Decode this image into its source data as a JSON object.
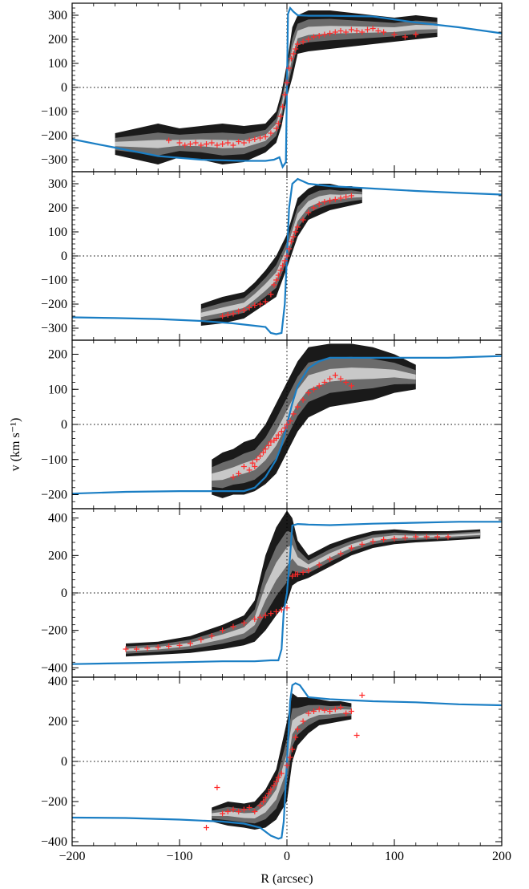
{
  "figure": {
    "x_label": "R (arcsec)",
    "y_label": "v (km s⁻¹)"
  },
  "colors": {
    "model_curve": "#1a7ec4",
    "data_points": "#ff2a2a",
    "contour_dark": "#1a1a1a",
    "contour_mid": "#6b6b6b",
    "contour_light": "#c8c8c8",
    "zero_line": "#000000"
  },
  "chart_data": [
    {
      "type": "scatter",
      "panel": 1,
      "xlim": [
        -200,
        200
      ],
      "ylim": [
        -350,
        350
      ],
      "yticks": [
        -300,
        -200,
        -100,
        0,
        100,
        200,
        300
      ],
      "xticks": [
        -200,
        -100,
        0,
        100,
        200
      ],
      "contour_envelope": {
        "x": [
          -160,
          -140,
          -120,
          -100,
          -80,
          -60,
          -40,
          -20,
          -10,
          -5,
          0,
          5,
          10,
          20,
          40,
          60,
          80,
          100,
          120,
          140
        ],
        "lower": [
          -280,
          -300,
          -320,
          -290,
          -300,
          -320,
          -310,
          -270,
          -230,
          -160,
          -40,
          40,
          140,
          150,
          160,
          170,
          180,
          190,
          200,
          210
        ],
        "upper": [
          -190,
          -170,
          -150,
          -170,
          -160,
          -150,
          -160,
          -150,
          -100,
          -20,
          100,
          250,
          300,
          320,
          320,
          310,
          300,
          290,
          300,
          290
        ]
      },
      "model_curve": {
        "x": [
          -200,
          -160,
          -120,
          -80,
          -40,
          -20,
          -12,
          -7,
          -4,
          -1,
          0,
          1,
          3,
          6,
          10,
          20,
          40,
          80,
          120,
          160,
          200
        ],
        "y": [
          -215,
          -250,
          -285,
          -300,
          -305,
          -305,
          -300,
          -290,
          -330,
          -310,
          0,
          305,
          330,
          315,
          300,
          298,
          298,
          295,
          270,
          250,
          225
        ]
      },
      "points": {
        "x": [
          -110,
          -100,
          -95,
          -90,
          -85,
          -80,
          -75,
          -70,
          -65,
          -60,
          -55,
          -50,
          -45,
          -40,
          -35,
          -30,
          -25,
          -20,
          -15,
          -10,
          -8,
          -6,
          -4,
          -2,
          0,
          2,
          4,
          6,
          8,
          10,
          15,
          20,
          25,
          30,
          35,
          40,
          45,
          50,
          55,
          60,
          65,
          70,
          75,
          80,
          85,
          90,
          100,
          110,
          120
        ],
        "y": [
          -220,
          -230,
          -240,
          -235,
          -230,
          -240,
          -235,
          -230,
          -240,
          -235,
          -230,
          -240,
          -225,
          -230,
          -220,
          -215,
          -210,
          -205,
          -190,
          -170,
          -150,
          -120,
          -80,
          -30,
          20,
          80,
          120,
          140,
          160,
          180,
          190,
          200,
          210,
          215,
          220,
          225,
          230,
          235,
          230,
          240,
          235,
          230,
          240,
          245,
          235,
          230,
          220,
          210,
          220
        ]
      }
    },
    {
      "type": "scatter",
      "panel": 2,
      "xlim": [
        -200,
        200
      ],
      "ylim": [
        -350,
        350
      ],
      "yticks": [
        -300,
        -200,
        -100,
        0,
        100,
        200,
        300
      ],
      "xticks": [
        -200,
        -100,
        0,
        100,
        200
      ],
      "contour_envelope": {
        "x": [
          -80,
          -60,
          -40,
          -30,
          -20,
          -10,
          0,
          10,
          20,
          30,
          40,
          50,
          60,
          70
        ],
        "lower": [
          -290,
          -280,
          -260,
          -230,
          -200,
          -170,
          -50,
          80,
          150,
          170,
          190,
          200,
          210,
          220
        ],
        "upper": [
          -200,
          -170,
          -150,
          -110,
          -60,
          0,
          90,
          240,
          280,
          300,
          300,
          290,
          290,
          280
        ]
      },
      "model_curve": {
        "x": [
          -200,
          -160,
          -120,
          -80,
          -50,
          -30,
          -20,
          -15,
          -10,
          -5,
          -2,
          0,
          2,
          5,
          10,
          15,
          20,
          40,
          80,
          120,
          160,
          200
        ],
        "y": [
          -255,
          -258,
          -262,
          -270,
          -280,
          -290,
          -295,
          -320,
          -325,
          -320,
          -200,
          0,
          200,
          300,
          320,
          310,
          300,
          290,
          280,
          270,
          262,
          255
        ]
      },
      "points": {
        "x": [
          -60,
          -55,
          -50,
          -45,
          -40,
          -35,
          -30,
          -25,
          -20,
          -15,
          -12,
          -10,
          -8,
          -6,
          -4,
          -2,
          0,
          2,
          4,
          6,
          8,
          10,
          15,
          20,
          25,
          30,
          35,
          40,
          45,
          50,
          55,
          60
        ],
        "y": [
          -250,
          -245,
          -240,
          -230,
          -225,
          -215,
          -205,
          -200,
          -190,
          -160,
          -120,
          -100,
          -80,
          -60,
          -40,
          -20,
          0,
          30,
          60,
          80,
          100,
          120,
          150,
          180,
          200,
          215,
          225,
          230,
          235,
          240,
          245,
          250
        ]
      }
    },
    {
      "type": "scatter",
      "panel": 3,
      "xlim": [
        -200,
        200
      ],
      "ylim": [
        -240,
        240
      ],
      "yticks": [
        -200,
        -100,
        0,
        100,
        200
      ],
      "xticks": [
        -200,
        -100,
        0,
        100,
        200
      ],
      "contour_envelope": {
        "x": [
          -70,
          -60,
          -50,
          -40,
          -30,
          -20,
          -10,
          0,
          10,
          20,
          40,
          60,
          80,
          100,
          120
        ],
        "lower": [
          -200,
          -210,
          -200,
          -200,
          -190,
          -170,
          -140,
          -80,
          -20,
          20,
          50,
          60,
          70,
          90,
          100
        ],
        "upper": [
          -100,
          -80,
          -70,
          -50,
          -40,
          0,
          60,
          120,
          180,
          220,
          230,
          230,
          220,
          200,
          170
        ]
      },
      "model_curve": {
        "x": [
          -200,
          -150,
          -100,
          -70,
          -50,
          -40,
          -30,
          -20,
          -10,
          -5,
          0,
          5,
          10,
          20,
          30,
          40,
          60,
          100,
          150,
          200
        ],
        "y": [
          -197,
          -192,
          -190,
          -190,
          -190,
          -190,
          -180,
          -150,
          -100,
          -60,
          0,
          60,
          110,
          160,
          180,
          190,
          190,
          190,
          190,
          195
        ]
      },
      "points": {
        "x": [
          -50,
          -45,
          -40,
          -35,
          -32,
          -30,
          -28,
          -25,
          -22,
          -20,
          -17,
          -15,
          -12,
          -10,
          -8,
          -5,
          -2,
          0,
          3,
          6,
          10,
          15,
          20,
          25,
          30,
          35,
          40,
          45,
          50,
          55,
          60
        ],
        "y": [
          -150,
          -140,
          -120,
          -130,
          -110,
          -120,
          -100,
          -90,
          -80,
          -70,
          -60,
          -50,
          -45,
          -40,
          -30,
          -20,
          -10,
          0,
          10,
          30,
          50,
          70,
          90,
          100,
          110,
          120,
          130,
          140,
          130,
          120,
          110
        ]
      }
    },
    {
      "type": "scatter",
      "panel": 4,
      "xlim": [
        -200,
        200
      ],
      "ylim": [
        -450,
        450
      ],
      "yticks": [
        -400,
        -200,
        0,
        200,
        400
      ],
      "xticks": [
        -200,
        -100,
        0,
        100,
        200
      ],
      "contour_envelope": {
        "x": [
          -150,
          -120,
          -90,
          -60,
          -40,
          -30,
          -20,
          -10,
          0,
          5,
          10,
          20,
          40,
          60,
          80,
          100,
          120,
          150,
          180
        ],
        "lower": [
          -340,
          -330,
          -320,
          -300,
          -280,
          -260,
          -200,
          -120,
          -50,
          40,
          60,
          80,
          140,
          200,
          240,
          260,
          270,
          280,
          290
        ],
        "upper": [
          -270,
          -260,
          -230,
          -170,
          -120,
          -40,
          200,
          350,
          440,
          400,
          280,
          200,
          260,
          300,
          330,
          340,
          330,
          330,
          340
        ]
      },
      "model_curve": {
        "x": [
          -200,
          -150,
          -100,
          -60,
          -30,
          -15,
          -8,
          -5,
          -3,
          0,
          3,
          5,
          8,
          10,
          20,
          40,
          80,
          120,
          160,
          200
        ],
        "y": [
          -380,
          -375,
          -370,
          -365,
          -365,
          -360,
          -360,
          -300,
          -100,
          0,
          200,
          360,
          365,
          368,
          365,
          362,
          370,
          375,
          380,
          380
        ]
      },
      "points": {
        "x": [
          -150,
          -140,
          -130,
          -120,
          -110,
          -100,
          -90,
          -80,
          -70,
          -60,
          -50,
          -40,
          -30,
          -25,
          -20,
          -15,
          -10,
          -5,
          0,
          5,
          8,
          10,
          15,
          20,
          30,
          40,
          50,
          60,
          70,
          80,
          90,
          100,
          110,
          120,
          130,
          140,
          150
        ],
        "y": [
          -300,
          -300,
          -295,
          -290,
          -285,
          -280,
          -270,
          -250,
          -230,
          -200,
          -180,
          -160,
          -140,
          -130,
          -120,
          -110,
          -100,
          -90,
          -80,
          90,
          100,
          100,
          110,
          120,
          150,
          180,
          210,
          240,
          260,
          275,
          285,
          290,
          295,
          300,
          300,
          300,
          300
        ]
      }
    },
    {
      "type": "scatter",
      "panel": 5,
      "xlim": [
        -200,
        200
      ],
      "ylim": [
        -420,
        420
      ],
      "yticks": [
        -400,
        -200,
        0,
        200,
        400
      ],
      "xticks": [
        -200,
        -100,
        0,
        100,
        200
      ],
      "contour_envelope": {
        "x": [
          -70,
          -55,
          -40,
          -30,
          -20,
          -10,
          0,
          5,
          10,
          20,
          30,
          40,
          50,
          60
        ],
        "lower": [
          -300,
          -320,
          -330,
          -340,
          -330,
          -290,
          -200,
          0,
          80,
          140,
          180,
          190,
          200,
          210
        ],
        "upper": [
          -230,
          -200,
          -210,
          -200,
          -140,
          -40,
          200,
          340,
          320,
          320,
          310,
          300,
          300,
          290
        ]
      },
      "model_curve": {
        "x": [
          -200,
          -150,
          -100,
          -60,
          -40,
          -25,
          -15,
          -8,
          -5,
          -3,
          0,
          3,
          5,
          8,
          12,
          20,
          40,
          80,
          120,
          160,
          200
        ],
        "y": [
          -280,
          -282,
          -290,
          -300,
          -310,
          -330,
          -370,
          -385,
          -380,
          -300,
          0,
          300,
          380,
          390,
          380,
          320,
          310,
          300,
          295,
          285,
          280
        ]
      },
      "points": {
        "x": [
          -75,
          -65,
          -60,
          -55,
          -50,
          -45,
          -40,
          -35,
          -30,
          -25,
          -22,
          -20,
          -17,
          -15,
          -12,
          -10,
          -8,
          -5,
          0,
          3,
          5,
          8,
          10,
          15,
          20,
          25,
          30,
          35,
          40,
          45,
          50,
          55,
          60,
          65,
          70
        ],
        "y": [
          -330,
          -130,
          -260,
          -250,
          -240,
          -250,
          -240,
          -230,
          -250,
          -220,
          -200,
          -180,
          -160,
          -140,
          -120,
          -100,
          -80,
          -60,
          -20,
          20,
          60,
          120,
          160,
          200,
          240,
          250,
          260,
          255,
          250,
          260,
          270,
          240,
          250,
          130,
          330
        ]
      }
    }
  ]
}
